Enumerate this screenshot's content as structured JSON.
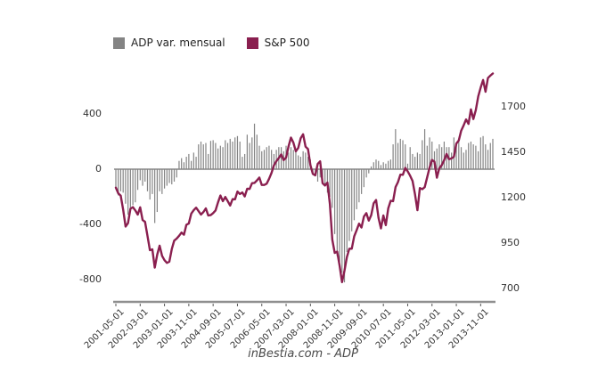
{
  "legend": {
    "items": [
      {
        "label": "ADP var. mensual",
        "color": "#848484"
      },
      {
        "label": "S&P 500",
        "color": "#8a1f4f"
      }
    ]
  },
  "footer": {
    "caption": "inBestia.com - ADP"
  },
  "chart_data": {
    "type": "bar+line combo, dual axis",
    "title": "",
    "xlabel": "",
    "ylabel_left": "",
    "ylabel_right": "",
    "grid": false,
    "legend_position": "top",
    "x_start_month": "2001-05",
    "x_months_count": 156,
    "x_tick_month_indices": [
      0,
      10,
      20,
      30,
      40,
      50,
      60,
      70,
      80,
      90,
      100,
      110,
      120,
      130,
      140,
      150
    ],
    "x_tick_labels": [
      "2001-05-01",
      "2002-03-01",
      "2003-01-01",
      "2003-11-01",
      "2004-09-01",
      "2005-07-01",
      "2006-05-01",
      "2007-03-01",
      "2008-01-01",
      "2008-11-01",
      "2009-09-01",
      "2010-07-01",
      "2011-05-01",
      "2012-03-01",
      "2013-01-01",
      "2013-11-01"
    ],
    "left_axis": {
      "ticks": [
        400,
        0,
        -400,
        -800
      ],
      "range": [
        -900,
        450
      ]
    },
    "right_axis": {
      "ticks": [
        1700,
        1450,
        1200,
        950,
        700
      ],
      "range": [
        650,
        1900
      ]
    },
    "series": [
      {
        "name": "ADP var. mensual",
        "type": "bar",
        "axis": "left",
        "color": "#848484",
        "values": [
          -130,
          -190,
          -160,
          -170,
          -250,
          -330,
          -310,
          -260,
          -240,
          -150,
          -80,
          -120,
          -90,
          -160,
          -220,
          -180,
          -390,
          -310,
          -160,
          -180,
          -140,
          -120,
          -100,
          -110,
          -90,
          -60,
          60,
          80,
          50,
          90,
          110,
          60,
          120,
          90,
          180,
          200,
          180,
          190,
          110,
          205,
          210,
          190,
          150,
          170,
          160,
          210,
          190,
          220,
          200,
          230,
          240,
          200,
          90,
          110,
          250,
          190,
          230,
          330,
          250,
          170,
          130,
          140,
          160,
          170,
          140,
          110,
          140,
          160,
          160,
          130,
          170,
          120,
          160,
          140,
          130,
          100,
          90,
          130,
          120,
          90,
          70,
          -40,
          -30,
          -90,
          -60,
          -110,
          -120,
          -170,
          -200,
          -280,
          -470,
          -630,
          -670,
          -750,
          -820,
          -600,
          -520,
          -450,
          -370,
          -290,
          -240,
          -180,
          -130,
          -60,
          -30,
          20,
          50,
          70,
          60,
          30,
          50,
          40,
          60,
          70,
          180,
          290,
          190,
          220,
          210,
          180,
          40,
          160,
          110,
          90,
          120,
          110,
          210,
          290,
          170,
          230,
          200,
          130,
          150,
          180,
          160,
          200,
          160,
          160,
          120,
          230,
          190,
          200,
          160,
          120,
          140,
          190,
          200,
          180,
          170,
          130,
          230,
          240,
          180,
          140,
          190,
          220
        ]
      },
      {
        "name": "S&P 500",
        "type": "line",
        "axis": "right",
        "color": "#8a1f4f",
        "values": [
          1255,
          1224,
          1211,
          1134,
          1041,
          1060,
          1139,
          1148,
          1130,
          1107,
          1147,
          1077,
          1067,
          990,
          911,
          916,
          815,
          886,
          936,
          880,
          856,
          841,
          848,
          917,
          964,
          975,
          990,
          1008,
          996,
          1051,
          1058,
          1112,
          1131,
          1145,
          1126,
          1107,
          1121,
          1141,
          1102,
          1104,
          1115,
          1130,
          1174,
          1212,
          1181,
          1204,
          1181,
          1157,
          1192,
          1191,
          1234,
          1220,
          1229,
          1207,
          1249,
          1248,
          1280,
          1281,
          1295,
          1311,
          1270,
          1270,
          1277,
          1304,
          1336,
          1378,
          1401,
          1418,
          1438,
          1407,
          1421,
          1482,
          1531,
          1503,
          1455,
          1474,
          1527,
          1549,
          1481,
          1468,
          1379,
          1331,
          1323,
          1386,
          1400,
          1280,
          1267,
          1283,
          1166,
          969,
          896,
          903,
          826,
          735,
          798,
          873,
          919,
          919,
          987,
          1021,
          1057,
          1036,
          1096,
          1115,
          1074,
          1104,
          1169,
          1187,
          1089,
          1031,
          1102,
          1049,
          1141,
          1183,
          1181,
          1258,
          1286,
          1327,
          1326,
          1364,
          1345,
          1321,
          1292,
          1219,
          1131,
          1253,
          1247,
          1258,
          1312,
          1366,
          1408,
          1398,
          1310,
          1362,
          1379,
          1407,
          1441,
          1412,
          1416,
          1426,
          1498,
          1515,
          1569,
          1598,
          1631,
          1606,
          1686,
          1633,
          1682,
          1757,
          1806,
          1848,
          1783,
          1859,
          1872,
          1884
        ]
      }
    ]
  }
}
